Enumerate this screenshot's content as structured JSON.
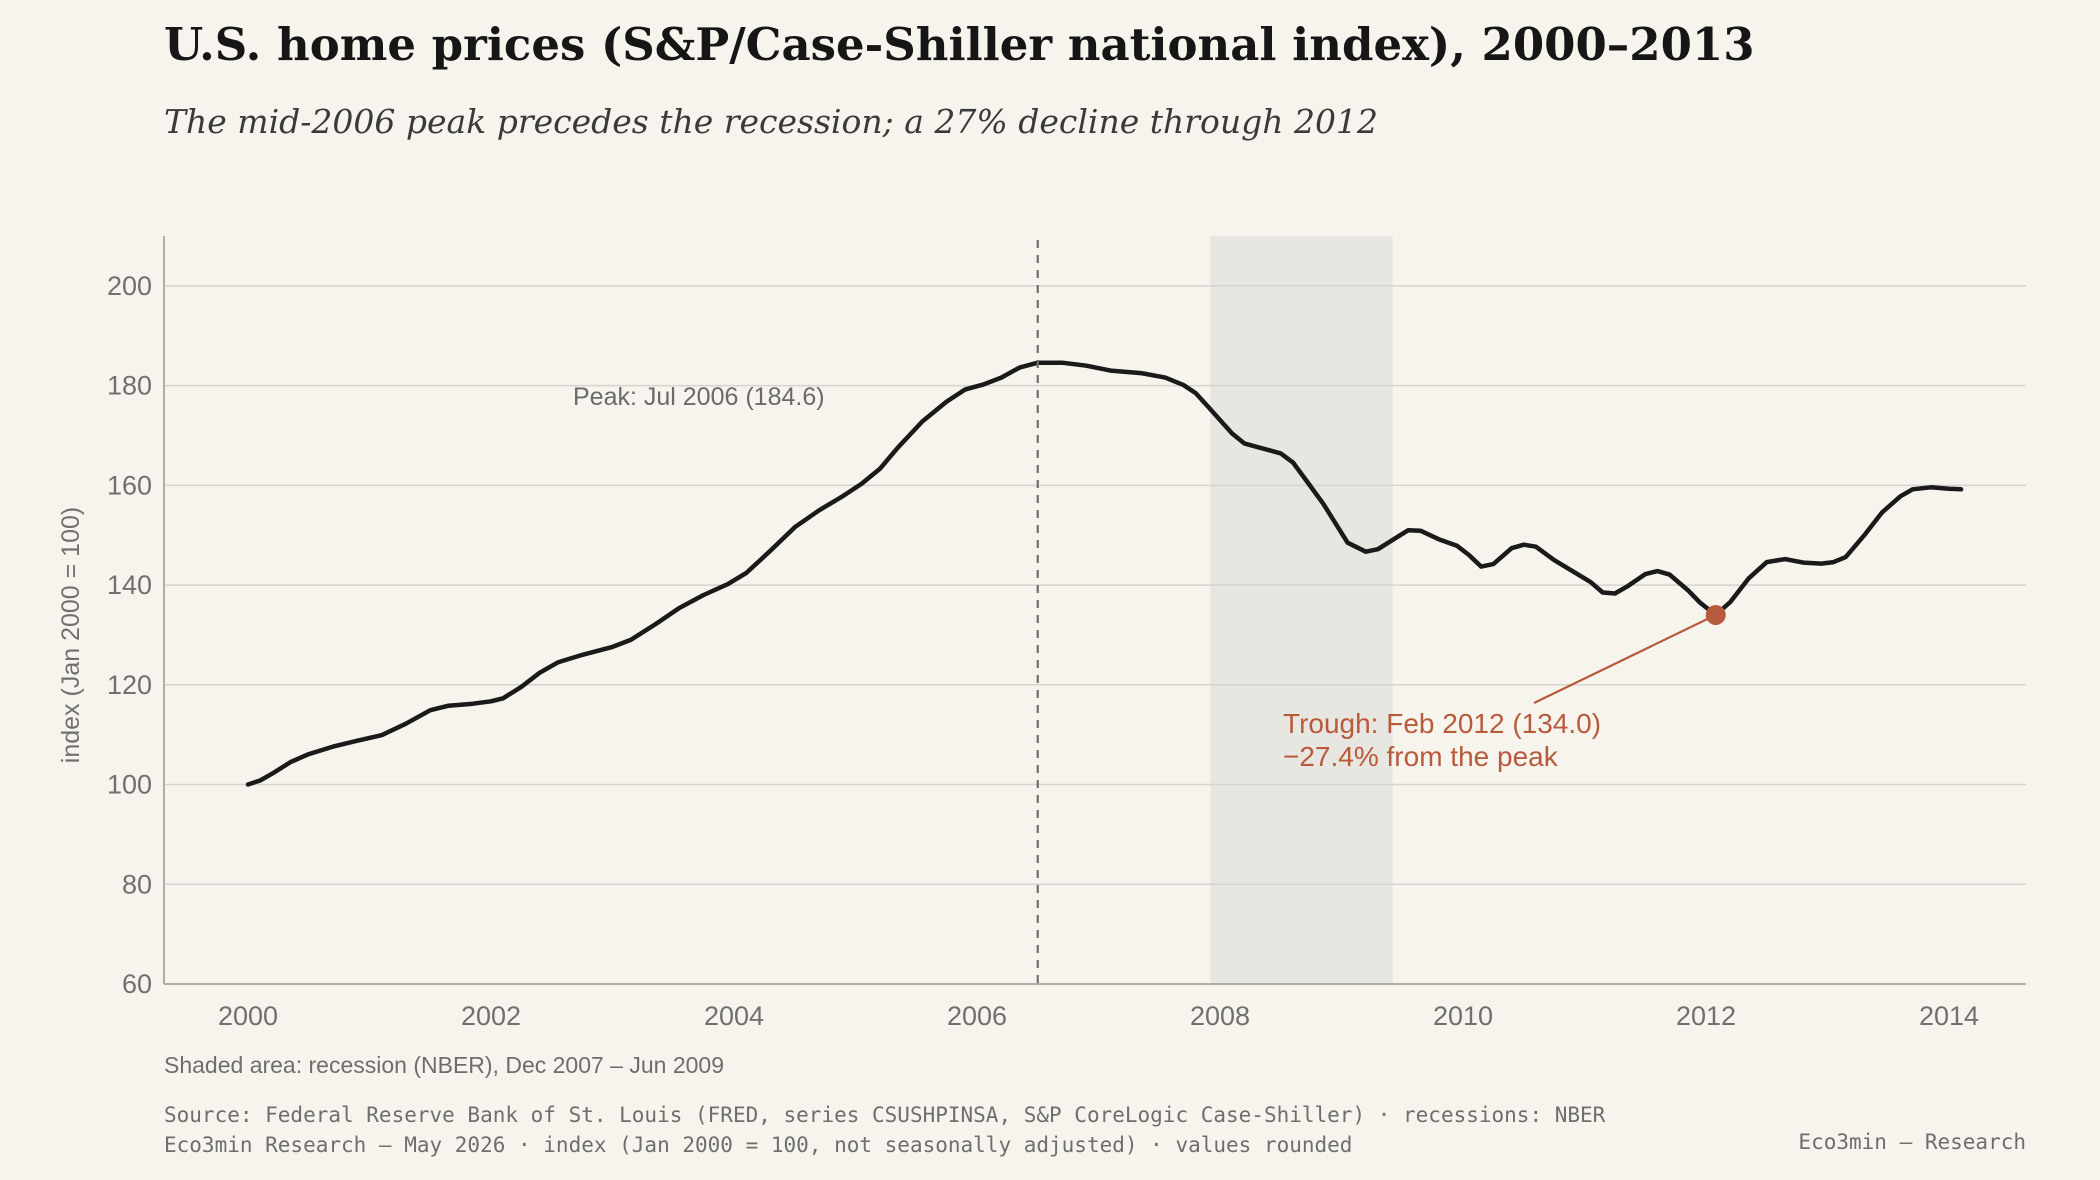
{
  "title": "U.S. home prices (S&P/Case-Shiller national index), 2000–2013",
  "subtitle": "The mid-2006 peak precedes the recession; a 27% decline through 2012",
  "note": "Shaded area: recession (NBER), Dec 2007 – Jun 2009",
  "source_line1": "Source: Federal Reserve Bank of St. Louis (FRED, series CSUSHPINSA, S&P CoreLogic Case-Shiller) · recessions: NBER",
  "source_line2": "Eco3min Research — May 2026 · index (Jan 2000 = 100, not seasonally adjusted) · values rounded",
  "brand": "Eco3min — Research",
  "colors": {
    "line": "#1a1a1a",
    "accent": "#b85a3c",
    "recession": "#e8e6e1",
    "grid": "#d6d4cf",
    "axis_text": "#707070"
  },
  "chart_data": {
    "type": "line",
    "ylabel": "index (Jan 2000 = 100)",
    "xlim": [
      2000,
      2014
    ],
    "ylim": [
      60,
      210
    ],
    "x_ticks": [
      "2000",
      "2002",
      "2004",
      "2006",
      "2008",
      "2010",
      "2012",
      "2014"
    ],
    "y_ticks": [
      "60",
      "80",
      "100",
      "120",
      "140",
      "160",
      "180",
      "200"
    ],
    "grid": true,
    "recession": {
      "start": 2007.92,
      "end": 2009.42
    },
    "peak": {
      "x": 2006.5,
      "y": 184.6,
      "label": "Peak: Jul 2006 (184.6)"
    },
    "trough": {
      "x": 2012.08,
      "y": 134.0,
      "label_line1": "Trough: Feb 2012 (134.0)",
      "label_line2": "−27.4% from the peak"
    },
    "series": [
      {
        "values": [
          [
            2000.0,
            100.0
          ],
          [
            2000.1,
            100.8
          ],
          [
            2000.2,
            102.2
          ],
          [
            2000.35,
            104.5
          ],
          [
            2000.5,
            106.1
          ],
          [
            2000.7,
            107.6
          ],
          [
            2000.9,
            108.8
          ],
          [
            2001.1,
            109.9
          ],
          [
            2001.3,
            112.2
          ],
          [
            2001.5,
            114.9
          ],
          [
            2001.65,
            115.8
          ],
          [
            2001.85,
            116.2
          ],
          [
            2002.0,
            116.7
          ],
          [
            2002.1,
            117.3
          ],
          [
            2002.25,
            119.6
          ],
          [
            2002.4,
            122.4
          ],
          [
            2002.55,
            124.5
          ],
          [
            2002.75,
            126.0
          ],
          [
            2003.0,
            127.6
          ],
          [
            2003.15,
            129.0
          ],
          [
            2003.35,
            132.1
          ],
          [
            2003.55,
            135.4
          ],
          [
            2003.75,
            138.0
          ],
          [
            2003.95,
            140.2
          ],
          [
            2004.1,
            142.4
          ],
          [
            2004.3,
            146.9
          ],
          [
            2004.5,
            151.6
          ],
          [
            2004.7,
            155.0
          ],
          [
            2004.9,
            157.9
          ],
          [
            2005.05,
            160.3
          ],
          [
            2005.2,
            163.3
          ],
          [
            2005.35,
            167.6
          ],
          [
            2005.55,
            172.8
          ],
          [
            2005.75,
            176.8
          ],
          [
            2005.9,
            179.2
          ],
          [
            2006.05,
            180.2
          ],
          [
            2006.2,
            181.6
          ],
          [
            2006.35,
            183.6
          ],
          [
            2006.5,
            184.6
          ],
          [
            2006.7,
            184.6
          ],
          [
            2006.9,
            184.0
          ],
          [
            2007.1,
            183.0
          ],
          [
            2007.35,
            182.5
          ],
          [
            2007.55,
            181.6
          ],
          [
            2007.7,
            180.1
          ],
          [
            2007.8,
            178.5
          ],
          [
            2007.9,
            175.8
          ],
          [
            2008.0,
            173.1
          ],
          [
            2008.1,
            170.4
          ],
          [
            2008.2,
            168.4
          ],
          [
            2008.35,
            167.4
          ],
          [
            2008.5,
            166.4
          ],
          [
            2008.6,
            164.6
          ],
          [
            2008.7,
            161.3
          ],
          [
            2008.85,
            156.3
          ],
          [
            2008.95,
            152.4
          ],
          [
            2009.05,
            148.5
          ],
          [
            2009.2,
            146.7
          ],
          [
            2009.3,
            147.2
          ],
          [
            2009.45,
            149.5
          ],
          [
            2009.55,
            151.0
          ],
          [
            2009.65,
            150.9
          ],
          [
            2009.8,
            149.2
          ],
          [
            2009.95,
            147.9
          ],
          [
            2010.05,
            146.0
          ],
          [
            2010.15,
            143.7
          ],
          [
            2010.25,
            144.2
          ],
          [
            2010.4,
            147.4
          ],
          [
            2010.5,
            148.1
          ],
          [
            2010.6,
            147.7
          ],
          [
            2010.75,
            145.0
          ],
          [
            2010.9,
            142.8
          ],
          [
            2011.05,
            140.6
          ],
          [
            2011.15,
            138.5
          ],
          [
            2011.25,
            138.3
          ],
          [
            2011.35,
            139.7
          ],
          [
            2011.5,
            142.2
          ],
          [
            2011.6,
            142.8
          ],
          [
            2011.7,
            142.1
          ],
          [
            2011.85,
            139.0
          ],
          [
            2011.95,
            136.5
          ],
          [
            2012.08,
            134.0
          ],
          [
            2012.2,
            136.6
          ],
          [
            2012.35,
            141.3
          ],
          [
            2012.5,
            144.6
          ],
          [
            2012.65,
            145.2
          ],
          [
            2012.8,
            144.5
          ],
          [
            2012.95,
            144.3
          ],
          [
            2013.05,
            144.6
          ],
          [
            2013.15,
            145.6
          ],
          [
            2013.3,
            149.9
          ],
          [
            2013.45,
            154.6
          ],
          [
            2013.6,
            157.8
          ],
          [
            2013.7,
            159.2
          ],
          [
            2013.85,
            159.6
          ],
          [
            2014.0,
            159.3
          ],
          [
            2014.1,
            159.2
          ]
        ]
      }
    ]
  }
}
